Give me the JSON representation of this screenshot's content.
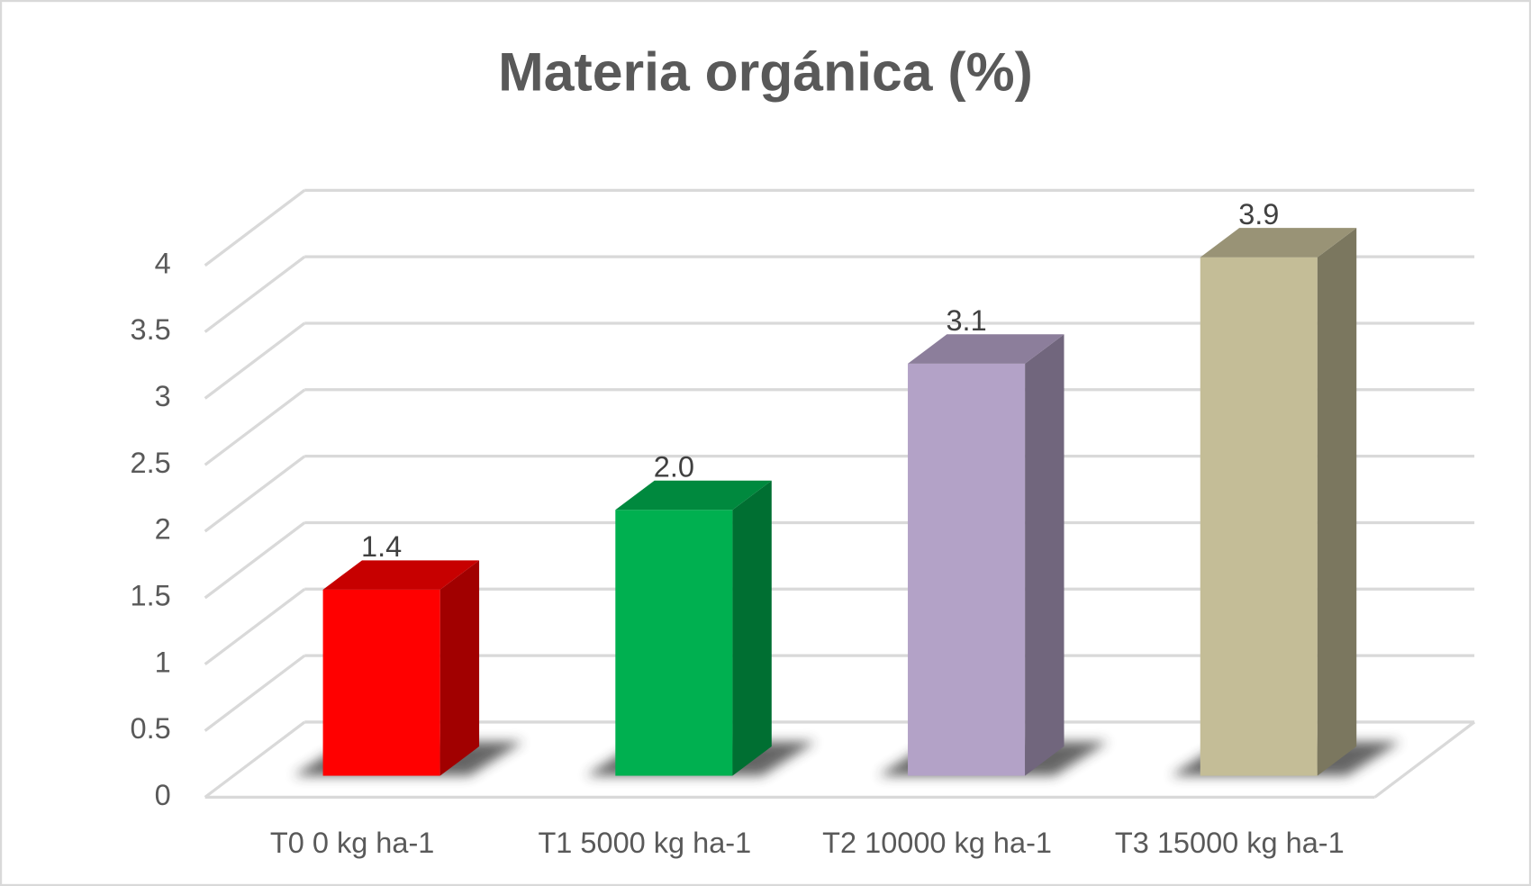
{
  "chart_data": {
    "type": "bar3d",
    "title": "Materia orgánica (%)",
    "categories": [
      "T0 0 kg ha-1",
      "T1 5000 kg ha-1",
      "T2 10000 kg ha-1",
      "T3 15000 kg ha-1"
    ],
    "values": [
      1.4,
      2.0,
      3.1,
      3.9
    ],
    "value_labels": [
      "1.4",
      "2.0",
      "3.1",
      "3.9"
    ],
    "colors": [
      "#ff0000",
      "#00b050",
      "#b3a2c7",
      "#c4bd97"
    ],
    "ylim": [
      0,
      4
    ],
    "yticks": [
      0,
      0.5,
      1,
      1.5,
      2,
      2.5,
      3,
      3.5,
      4
    ],
    "grid": true
  }
}
